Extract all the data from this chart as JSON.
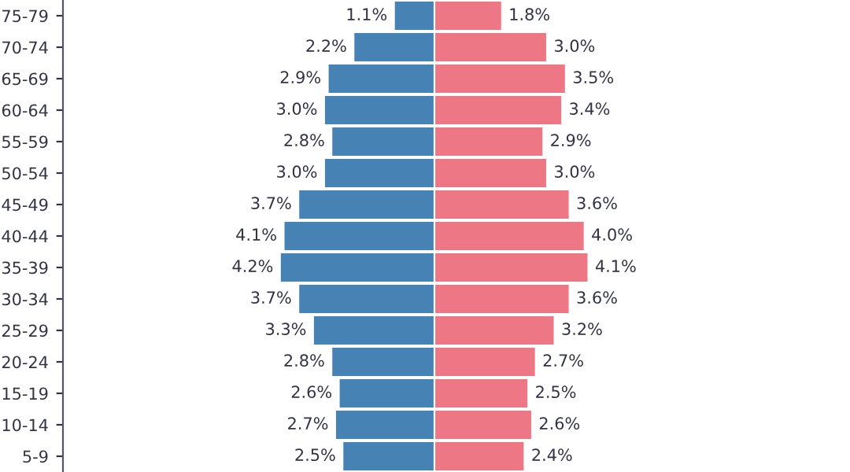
{
  "chart_data": [
    {
      "type": "bar",
      "orientation": "horizontal",
      "categories": [
        "75-79",
        "70-74",
        "65-69",
        "60-64",
        "55-59",
        "50-54",
        "45-49",
        "40-44",
        "35-39",
        "30-34",
        "25-29",
        "20-24",
        "15-19",
        "10-14",
        "5-9"
      ],
      "xlim": [
        10.1,
        0
      ],
      "tick_labels": "y",
      "legend": false,
      "series": [
        {
          "color": "#4682b4",
          "values": [
            1.1,
            2.2,
            2.9,
            3.0,
            2.8,
            3.0,
            3.7,
            4.1,
            4.2,
            3.7,
            3.3,
            2.8,
            2.6,
            2.7,
            2.5
          ],
          "value_labels": [
            "1.1%",
            "2.2%",
            "2.9%",
            "3.0%",
            "2.8%",
            "3.0%",
            "3.7%",
            "4.1%",
            "4.2%",
            "3.7%",
            "3.3%",
            "2.8%",
            "2.6%",
            "2.7%",
            "2.5%"
          ]
        }
      ]
    },
    {
      "type": "bar",
      "orientation": "horizontal",
      "categories": [
        null,
        null,
        null,
        null,
        null,
        null,
        null,
        null,
        null,
        null,
        null,
        null,
        null,
        null,
        null
      ],
      "tick_labels": false,
      "legend": false,
      "series": [
        {
          "color": "#ee7785",
          "values": [
            1.8,
            3.0,
            3.5,
            3.4,
            2.9,
            3.0,
            3.6,
            4.0,
            4.1,
            3.6,
            3.2,
            2.7,
            2.5,
            2.6,
            2.4
          ],
          "value_labels": [
            "1.8%",
            "3.0%",
            "3.5%",
            "3.4%",
            "2.9%",
            "3.0%",
            "3.6%",
            "4.0%",
            "4.1%",
            "3.6%",
            "3.2%",
            "2.7%",
            "2.5%",
            "2.6%",
            "2.4%"
          ]
        }
      ]
    }
  ]
}
